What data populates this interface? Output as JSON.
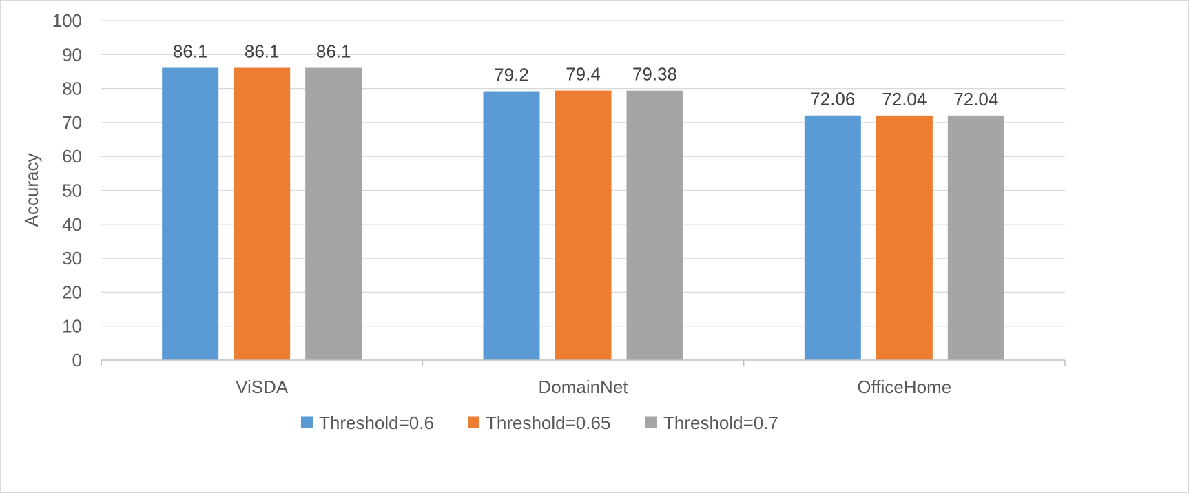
{
  "chart_data": {
    "type": "bar",
    "title": "",
    "xlabel": "",
    "ylabel": "Accuracy",
    "ylim": [
      0,
      100
    ],
    "yticks": [
      0,
      10,
      20,
      30,
      40,
      50,
      60,
      70,
      80,
      90,
      100
    ],
    "grid": true,
    "legend_position": "bottom",
    "categories": [
      "ViSDA",
      "DomainNet",
      "OfficeHome"
    ],
    "series": [
      {
        "name": "Threshold=0.6",
        "color": "#5b9bd5",
        "values": [
          86.1,
          79.2,
          72.06
        ],
        "labels": [
          "86.1",
          "79.2",
          "72.06"
        ]
      },
      {
        "name": "Threshold=0.65",
        "color": "#ed7d31",
        "values": [
          86.1,
          79.4,
          72.04
        ],
        "labels": [
          "86.1",
          "79.4",
          "72.04"
        ]
      },
      {
        "name": "Threshold=0.7",
        "color": "#a5a5a5",
        "values": [
          86.1,
          79.38,
          72.04
        ],
        "labels": [
          "86.1",
          "79.38",
          "72.04"
        ]
      }
    ],
    "colors": {
      "grid": "#d9d9d9",
      "axis": "#bfbfbf"
    }
  }
}
